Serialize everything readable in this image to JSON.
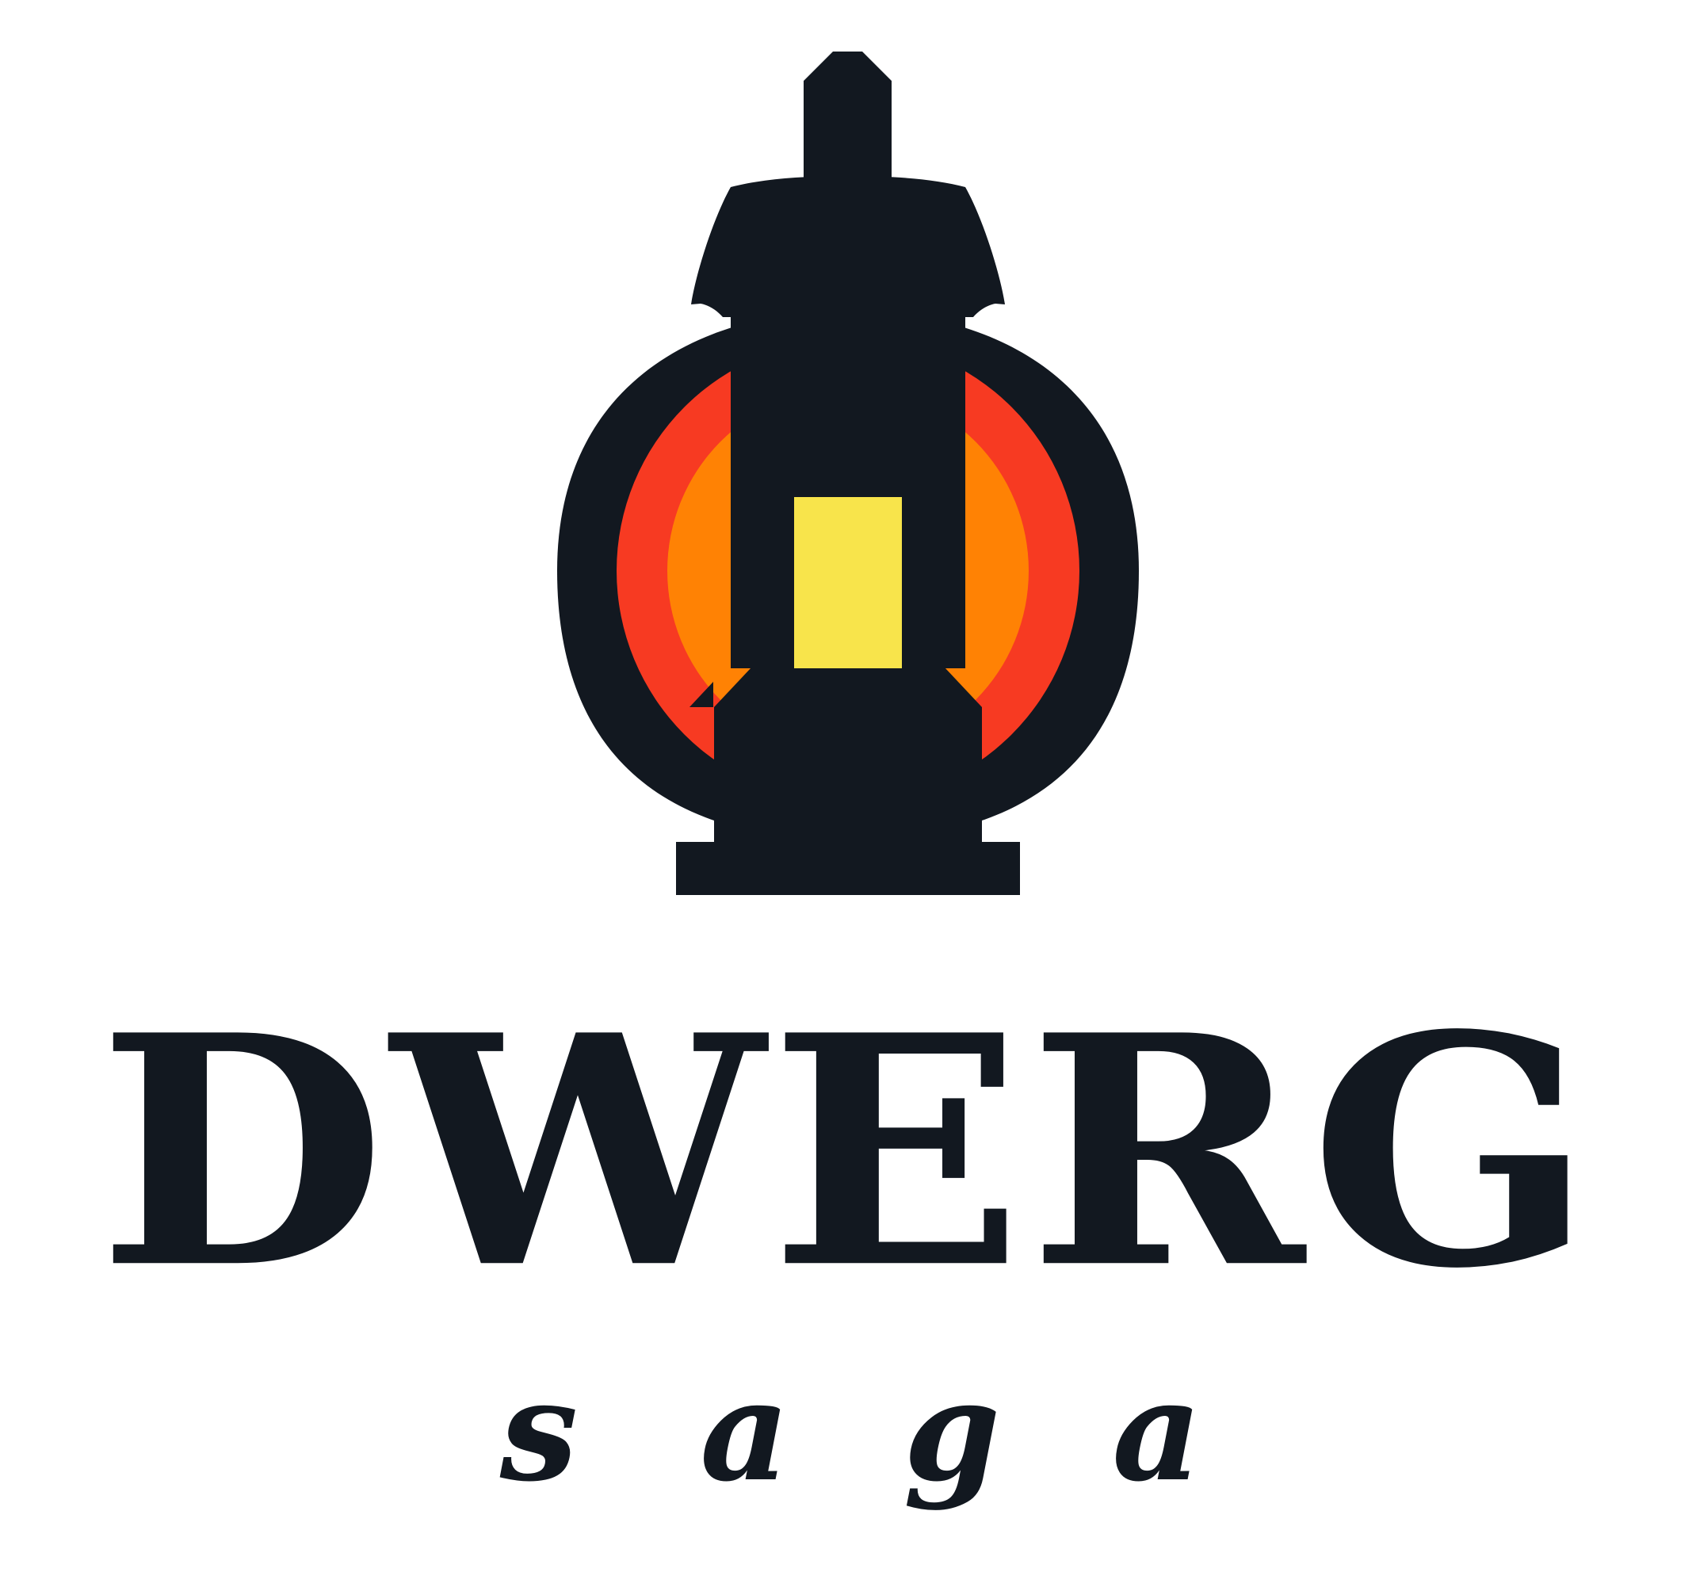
{
  "brand": {
    "name": "DWERG",
    "tagline_letters": [
      "s",
      "a",
      "g",
      "a"
    ]
  },
  "icon": {
    "name": "lantern-icon"
  },
  "colors": {
    "ink": "#121820",
    "outer_glow": "#f73a22",
    "inner_glow": "#ff8204",
    "flame": "#f8e44b",
    "background": "#ffffff"
  }
}
